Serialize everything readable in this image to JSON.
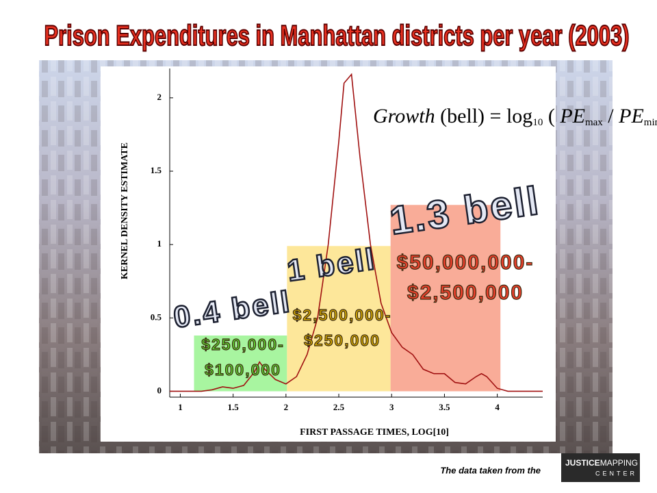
{
  "title": "Prison Expenditures in Manhattan districts per year (2003)",
  "footer": "The data taken from the",
  "logo": {
    "word1": "JUSTICE",
    "word2": "MAPPING",
    "word3": "CENTER"
  },
  "formula": [
    {
      "text": "Growth",
      "style": "italic"
    },
    {
      "text": " (bell) = log",
      "style": "roman"
    },
    {
      "text": "10",
      "style": "sub"
    },
    {
      "text": " ( ",
      "style": "roman"
    },
    {
      "text": "PE",
      "style": "italic"
    },
    {
      "text": "max",
      "style": "sub"
    },
    {
      "text": " / ",
      "style": "roman"
    },
    {
      "text": "PE",
      "style": "italic"
    },
    {
      "text": "min",
      "style": "sub"
    },
    {
      "text": " )",
      "style": "roman"
    }
  ],
  "chart_data": {
    "type": "line",
    "x_label": "FIRST PASSAGE TIMES, LOG[10]",
    "y_label": "KERNEL DENSITY ESTIMATE",
    "xlim": [
      0.9,
      4.43
    ],
    "ylim": [
      -0.04,
      2.2
    ],
    "xticks": [
      1,
      1.5,
      2,
      2.5,
      3,
      3.5,
      4
    ],
    "yticks": [
      0,
      0.5,
      1,
      1.5,
      2
    ],
    "series": [
      {
        "color": "#a01010",
        "x": [
          0.9,
          1.0,
          1.2,
          1.3,
          1.4,
          1.5,
          1.6,
          1.7,
          1.75,
          1.8,
          1.9,
          2.0,
          2.1,
          2.2,
          2.3,
          2.4,
          2.5,
          2.55,
          2.62,
          2.7,
          2.8,
          2.9,
          3.0,
          3.1,
          3.2,
          3.3,
          3.4,
          3.5,
          3.6,
          3.7,
          3.8,
          3.85,
          3.9,
          4.0,
          4.1,
          4.43
        ],
        "values": [
          0,
          0,
          0,
          0.01,
          0.03,
          0.02,
          0.04,
          0.13,
          0.2,
          0.15,
          0.08,
          0.05,
          0.1,
          0.25,
          0.5,
          1.0,
          1.7,
          2.1,
          2.16,
          1.6,
          1.0,
          0.6,
          0.4,
          0.3,
          0.25,
          0.15,
          0.12,
          0.12,
          0.06,
          0.05,
          0.1,
          0.12,
          0.1,
          0.02,
          0,
          0
        ]
      }
    ],
    "bands": [
      {
        "x": [
          1.13,
          2.01
        ],
        "value": 0.38,
        "color": "#a8f5a0",
        "text_color": "#5ccf30",
        "growth_label": "0.4 bell",
        "range_label": [
          "$250,000-",
          "$100,000"
        ]
      },
      {
        "x": [
          2.01,
          2.99
        ],
        "value": 0.99,
        "color": "#fde79a",
        "text_color": "#d4a800",
        "growth_label": "1 bell",
        "range_label": [
          "$2,500,000-",
          "$250,000"
        ]
      },
      {
        "x": [
          2.99,
          4.03
        ],
        "value": 1.27,
        "color": "#f9ac98",
        "text_color": "#e8402c",
        "growth_label": "1.3 bell",
        "range_label": [
          "$50,000,000-",
          "$2,500,000"
        ]
      }
    ]
  }
}
